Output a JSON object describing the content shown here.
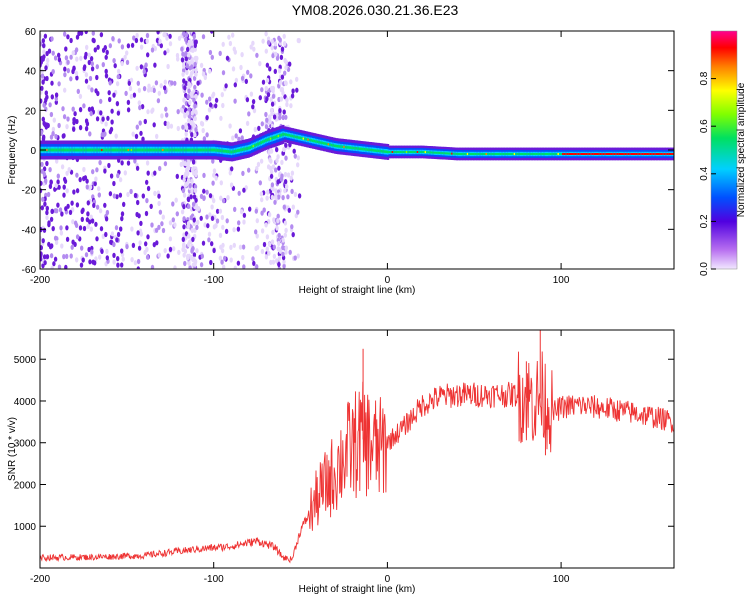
{
  "title": "YM08.2026.030.21.36.E23",
  "colors": {
    "signal": "#ee3333",
    "scatter": "#6a1ad8",
    "bg": "#ffffff"
  },
  "chart_data": [
    {
      "type": "heatmap",
      "name": "spectrogram",
      "xlabel": "Height of straight line (km)",
      "ylabel": "Frequency (Hz)",
      "xlim": [
        -200,
        165
      ],
      "ylim": [
        -60,
        60
      ],
      "x_ticks": [
        "-200",
        "-100",
        "0",
        "100"
      ],
      "y_ticks": [
        "-60",
        "-40",
        "-20",
        "0",
        "20",
        "40",
        "60"
      ],
      "ridge": {
        "x": [
          -200,
          -140,
          -120,
          -100,
          -90,
          -80,
          -70,
          -60,
          -50,
          -40,
          -30,
          -20,
          -10,
          0,
          20,
          40,
          60,
          80,
          100,
          120,
          140,
          165
        ],
        "y": [
          0,
          0,
          0,
          0,
          -1,
          1,
          5,
          8,
          6,
          4,
          2,
          1,
          0,
          -1,
          -1,
          -2,
          -2,
          -2,
          -2,
          -2,
          -2,
          -2
        ]
      },
      "colorbar": {
        "label": "Normalized spectral amplitude",
        "ticks": [
          "0.0",
          "0.2",
          "0.4",
          "0.6",
          "0.8"
        ],
        "range": [
          0,
          1
        ]
      }
    },
    {
      "type": "line",
      "name": "snr",
      "xlabel": "Height of straight line (km)",
      "ylabel": "SNR (10 * v/v)",
      "xlim": [
        -200,
        165
      ],
      "ylim": [
        0,
        5700
      ],
      "x_ticks": [
        "-200",
        "-100",
        "0",
        "100"
      ],
      "y_ticks": [
        "1000",
        "2000",
        "3000",
        "4000",
        "5000"
      ],
      "series": [
        {
          "name": "SNR",
          "x": [
            -200,
            -170,
            -140,
            -110,
            -90,
            -75,
            -65,
            -60,
            -55,
            -50,
            -40,
            -30,
            -25,
            -20,
            -15,
            -10,
            -5,
            0,
            10,
            20,
            30,
            40,
            60,
            75,
            85,
            90,
            95,
            100,
            110,
            130,
            150,
            165
          ],
          "y": [
            250,
            260,
            300,
            450,
            520,
            650,
            500,
            250,
            200,
            900,
            1700,
            2300,
            2700,
            2900,
            3100,
            3000,
            2800,
            3000,
            3400,
            3900,
            4100,
            4150,
            4150,
            4150,
            4000,
            4100,
            3700,
            3850,
            3900,
            3800,
            3650,
            3500
          ]
        }
      ],
      "spikes": [
        {
          "x": -14,
          "y": 5250
        },
        {
          "x": 80,
          "y": 4950
        },
        {
          "x": 88,
          "y": 5700
        },
        {
          "x": 91,
          "y": 2700
        }
      ]
    }
  ]
}
